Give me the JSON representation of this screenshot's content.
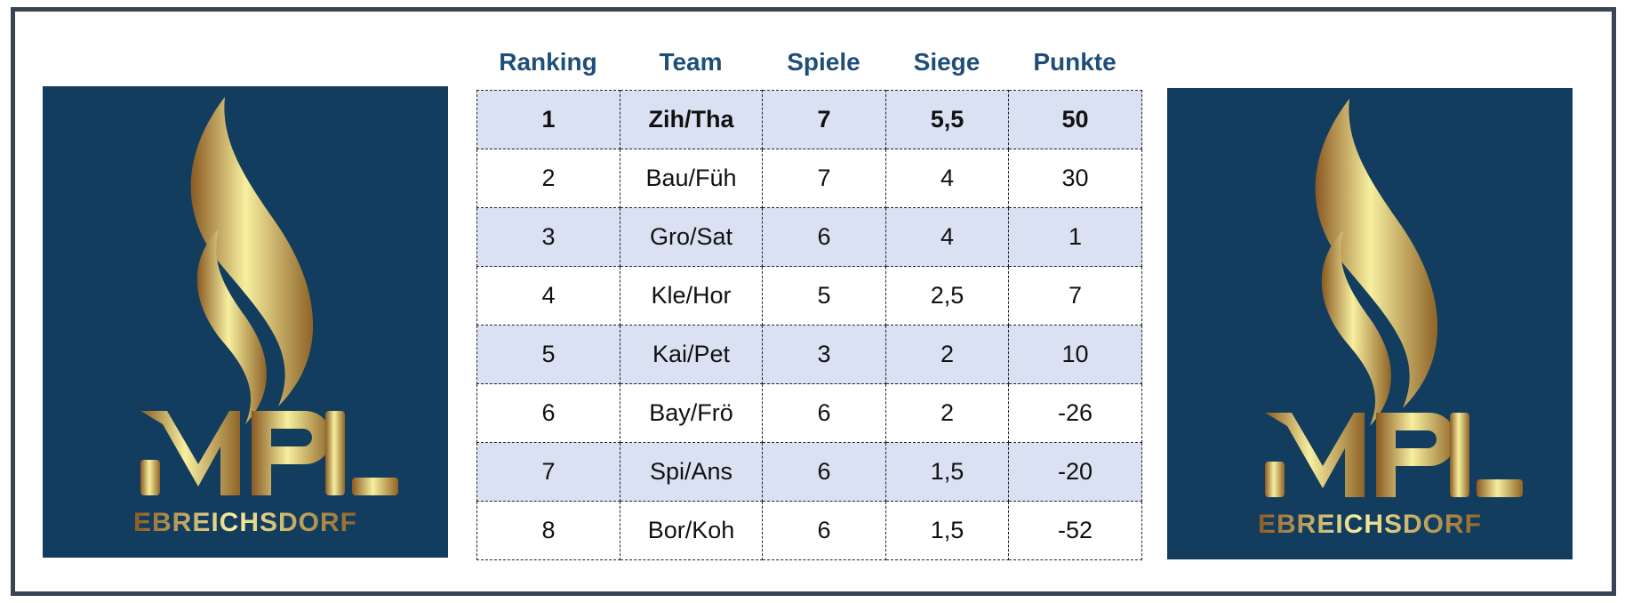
{
  "logo": {
    "text": "MPL",
    "subtext": "EBREICHSDORF",
    "background": "#133d5e",
    "gold": "#d4b464"
  },
  "table": {
    "headers": [
      "Ranking",
      "Team",
      "Spiele",
      "Siege",
      "Punkte"
    ],
    "rows": [
      [
        "1",
        "Zih/Tha",
        "7",
        "5,5",
        "50"
      ],
      [
        "2",
        "Bau/Füh",
        "7",
        "4",
        "30"
      ],
      [
        "3",
        "Gro/Sat",
        "6",
        "4",
        "1"
      ],
      [
        "4",
        "Kle/Hor",
        "5",
        "2,5",
        "7"
      ],
      [
        "5",
        "Kai/Pet",
        "3",
        "2",
        "10"
      ],
      [
        "6",
        "Bay/Frö",
        "6",
        "2",
        "-26"
      ],
      [
        "7",
        "Spi/Ans",
        "6",
        "1,5",
        "-20"
      ],
      [
        "8",
        "Bor/Koh",
        "6",
        "1,5",
        "-52"
      ]
    ],
    "header_color": "#1f4e79",
    "stripe_color": "#dae1f2"
  }
}
